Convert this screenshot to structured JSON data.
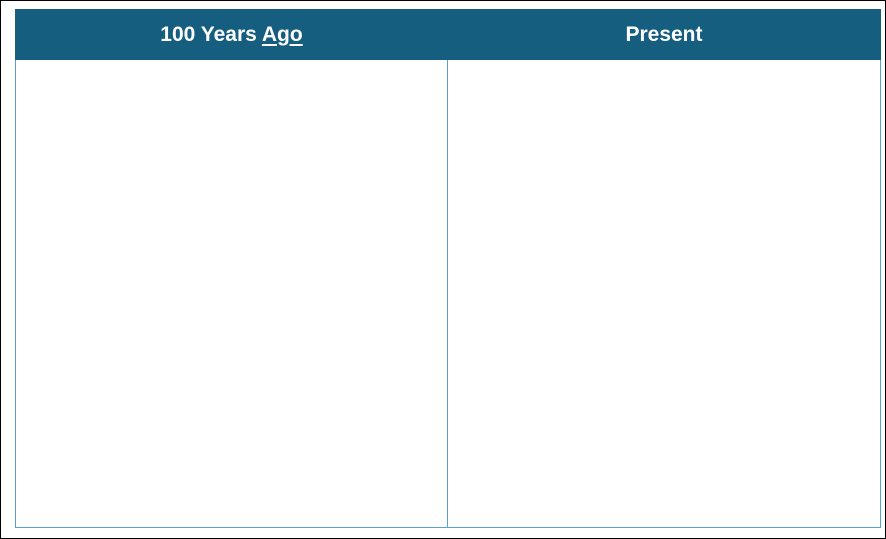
{
  "table": {
    "columns": [
      {
        "label_main": "100 Years ",
        "label_underlined": "Ago"
      },
      {
        "label_main": "Present",
        "label_underlined": ""
      }
    ],
    "header_color": "#165e7f",
    "border_color": "#5ba3cc"
  }
}
